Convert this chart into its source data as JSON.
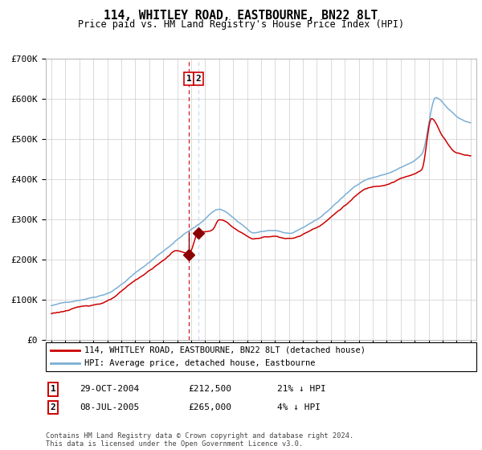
{
  "title": "114, WHITLEY ROAD, EASTBOURNE, BN22 8LT",
  "subtitle": "Price paid vs. HM Land Registry's House Price Index (HPI)",
  "footer": "Contains HM Land Registry data © Crown copyright and database right 2024.\nThis data is licensed under the Open Government Licence v3.0.",
  "legend_line1": "114, WHITLEY ROAD, EASTBOURNE, BN22 8LT (detached house)",
  "legend_line2": "HPI: Average price, detached house, Eastbourne",
  "transaction1_date": "29-OCT-2004",
  "transaction1_price": "£212,500",
  "transaction1_hpi": "21% ↓ HPI",
  "transaction2_date": "08-JUL-2005",
  "transaction2_price": "£265,000",
  "transaction2_hpi": "4% ↓ HPI",
  "red_line_color": "#cc0000",
  "blue_line_color": "#7bafd4",
  "vline1_color": "#cc0000",
  "vline2_color": "#aaccee",
  "background_color": "#ffffff",
  "grid_color": "#cccccc",
  "ylim": [
    0,
    700000
  ],
  "yticks": [
    0,
    100000,
    200000,
    300000,
    400000,
    500000,
    600000,
    700000
  ],
  "ytick_labels": [
    "£0",
    "£100K",
    "£200K",
    "£300K",
    "£400K",
    "£500K",
    "£600K",
    "£700K"
  ],
  "transaction1_x": 2004.83,
  "transaction1_y": 212500,
  "transaction2_x": 2005.52,
  "transaction2_y": 265000,
  "marker_color": "#8b0000",
  "marker_size": 7,
  "xlim_left": 1994.6,
  "xlim_right": 2025.4
}
